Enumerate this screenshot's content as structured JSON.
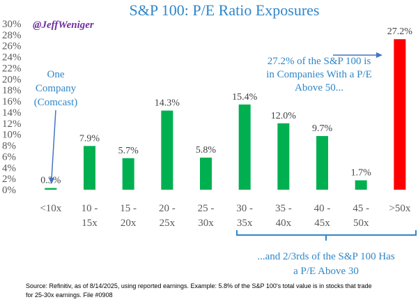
{
  "chart_data": {
    "type": "bar",
    "title": "S&P 100: P/E Ratio Exposures",
    "watermark": "@JeffWeniger",
    "categories": [
      [
        "<10x"
      ],
      [
        "10 -",
        "15x"
      ],
      [
        "15 -",
        "20x"
      ],
      [
        "20 -",
        "25x"
      ],
      [
        "25 -",
        "30x"
      ],
      [
        "30 -",
        "35x"
      ],
      [
        "35 -",
        "40x"
      ],
      [
        "40 -",
        "45x"
      ],
      [
        "45 -",
        "50x"
      ],
      [
        ">50x"
      ]
    ],
    "values": [
      0.3,
      7.9,
      5.7,
      14.3,
      5.8,
      15.4,
      12.0,
      9.7,
      1.7,
      27.2
    ],
    "data_labels": [
      "0.3%",
      "7.9%",
      "5.7%",
      "14.3%",
      "5.8%",
      "15.4%",
      "12.0%",
      "9.7%",
      "1.7%",
      "27.2%"
    ],
    "colors": [
      "#00b050",
      "#00b050",
      "#00b050",
      "#00b050",
      "#00b050",
      "#00b050",
      "#00b050",
      "#00b050",
      "#00b050",
      "#ff0000"
    ],
    "ylim": [
      0,
      30
    ],
    "yticks": [
      "0%",
      "2%",
      "4%",
      "6%",
      "8%",
      "10%",
      "12%",
      "14%",
      "16%",
      "18%",
      "20%",
      "22%",
      "24%",
      "26%",
      "28%",
      "30%"
    ],
    "grid": false,
    "xlabel": "",
    "ylabel": "",
    "annotations": {
      "comcast": [
        "One",
        "Company",
        "(Comcast)"
      ],
      "above50": [
        "27.2% of the S&P 100 is",
        "in Companies With a P/E",
        "Above 50..."
      ],
      "above30": [
        "...and 2/3rds of the S&P 100 Has",
        "a P/E Above 30"
      ]
    },
    "source": [
      "Source: Refinitiv, as of 8/14/2025, using reported earnings. Example: 5.8% of the S&P 100's total value is in stocks that trade",
      "for 25-30x earnings. File #0908"
    ]
  }
}
